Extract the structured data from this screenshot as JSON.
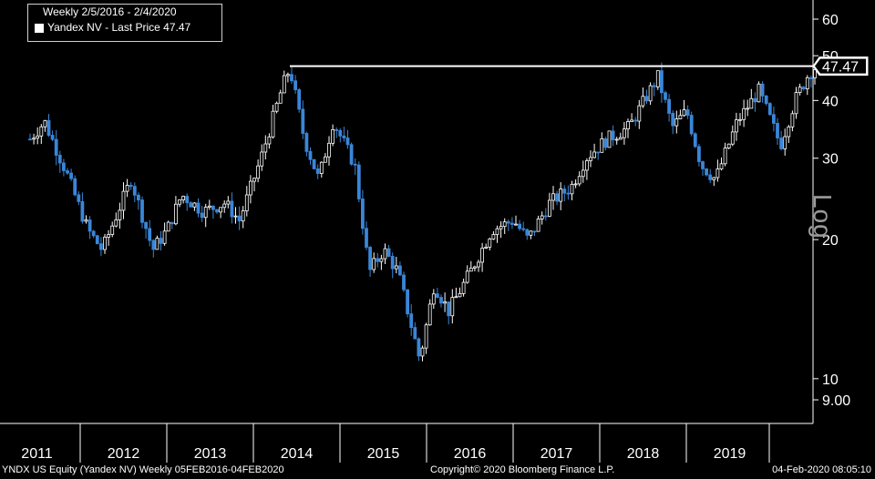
{
  "legend": {
    "title": "Weekly 2/5/2016 - 2/4/2020",
    "series_label": "Yandex NV - Last Price 47.47"
  },
  "footer": {
    "left": "YNDX US Equity (Yandex NV)  Weekly 05FEB2016-04FEB2020",
    "center": "Copyright© 2020 Bloomberg Finance L.P.",
    "right": "04-Feb-2020 08:05:10"
  },
  "axis": {
    "scale_label": "Log"
  },
  "colors": {
    "background": "#000000",
    "up": "#ffffff",
    "down": "#3a86d8",
    "line": "#ffffff"
  },
  "chart_data": {
    "type": "candlestick",
    "scale": "log",
    "y_ticks": [
      9,
      10,
      20,
      30,
      40,
      50,
      60
    ],
    "y_tick_labels": [
      "9.00",
      "10",
      "20",
      "30",
      "40",
      "50",
      "60"
    ],
    "ylim": [
      8,
      66
    ],
    "x_labels": [
      "2011",
      "2012",
      "2013",
      "2014",
      "2015",
      "2016",
      "2017",
      "2018",
      "2019"
    ],
    "last_price": 47.47,
    "last_price_label": "47.47",
    "resistance_level": 47.47,
    "anchor_points": [
      [
        "2011-01",
        33
      ],
      [
        "2011-03",
        36
      ],
      [
        "2011-06",
        28
      ],
      [
        "2011-09",
        21
      ],
      [
        "2011-11",
        19
      ],
      [
        "2012-03",
        27
      ],
      [
        "2012-06",
        19
      ],
      [
        "2012-08",
        21
      ],
      [
        "2012-10",
        25
      ],
      [
        "2013-01",
        23
      ],
      [
        "2013-04",
        24
      ],
      [
        "2013-06",
        22
      ],
      [
        "2013-09",
        30
      ],
      [
        "2013-12",
        43
      ],
      [
        "2014-01",
        47
      ],
      [
        "2014-03",
        33
      ],
      [
        "2014-05",
        27
      ],
      [
        "2014-07",
        36
      ],
      [
        "2014-10",
        29
      ],
      [
        "2014-12",
        17
      ],
      [
        "2015-02",
        19
      ],
      [
        "2015-04",
        17
      ],
      [
        "2015-07",
        11
      ],
      [
        "2015-09",
        16
      ],
      [
        "2015-11",
        14
      ],
      [
        "2016-02",
        17
      ],
      [
        "2016-05",
        21
      ],
      [
        "2016-08",
        22
      ],
      [
        "2016-10",
        20
      ],
      [
        "2017-01",
        24
      ],
      [
        "2017-04",
        26
      ],
      [
        "2017-06",
        30
      ],
      [
        "2017-09",
        33
      ],
      [
        "2017-12",
        35
      ],
      [
        "2018-04",
        45
      ],
      [
        "2018-06",
        35
      ],
      [
        "2018-08",
        38
      ],
      [
        "2018-10",
        29
      ],
      [
        "2018-12",
        27
      ],
      [
        "2019-03",
        36
      ],
      [
        "2019-06",
        42
      ],
      [
        "2019-09",
        32
      ],
      [
        "2019-11",
        40
      ],
      [
        "2020-01",
        46
      ],
      [
        "2020-02",
        47.47
      ]
    ]
  }
}
